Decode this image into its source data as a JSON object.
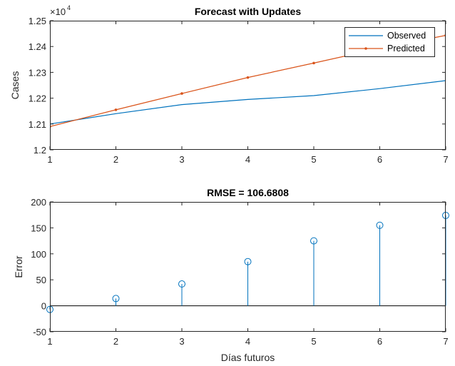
{
  "chart_data": [
    {
      "type": "line",
      "title": "Forecast with Updates",
      "xlabel": "",
      "ylabel": "Cases",
      "exponent_label": "×10",
      "exponent_power": "4",
      "xlim": [
        1,
        7
      ],
      "ylim": [
        12000,
        12500
      ],
      "x_ticks": [
        1,
        2,
        3,
        4,
        5,
        6,
        7
      ],
      "y_ticks": [
        12000,
        12100,
        12200,
        12300,
        12400,
        12500
      ],
      "y_tick_labels": [
        "1.2",
        "1.21",
        "1.22",
        "1.23",
        "1.24",
        "1.25"
      ],
      "grid": false,
      "legend_position": "top-right",
      "series": [
        {
          "name": "Observed",
          "color": "#0072BD",
          "marker": "none",
          "x": [
            1,
            2,
            3,
            4,
            5,
            6,
            7
          ],
          "y": [
            12100,
            12140,
            12175,
            12195,
            12210,
            12237,
            12268
          ]
        },
        {
          "name": "Predicted",
          "color": "#D95319",
          "marker": "dot",
          "x": [
            1,
            2,
            3,
            4,
            5,
            6,
            7
          ],
          "y": [
            12090,
            12155,
            12218,
            12280,
            12336,
            12393,
            12443
          ]
        }
      ]
    },
    {
      "type": "stem",
      "title": "RMSE = 106.6808",
      "xlabel": "Días futuros",
      "ylabel": "Error",
      "xlim": [
        1,
        7
      ],
      "ylim": [
        -50,
        200
      ],
      "x_ticks": [
        1,
        2,
        3,
        4,
        5,
        6,
        7
      ],
      "y_ticks": [
        -50,
        0,
        50,
        100,
        150,
        200
      ],
      "grid": false,
      "color": "#0072BD",
      "x": [
        1,
        2,
        3,
        4,
        5,
        6,
        7
      ],
      "y": [
        -7,
        14,
        42,
        85,
        125,
        155,
        174
      ]
    }
  ]
}
